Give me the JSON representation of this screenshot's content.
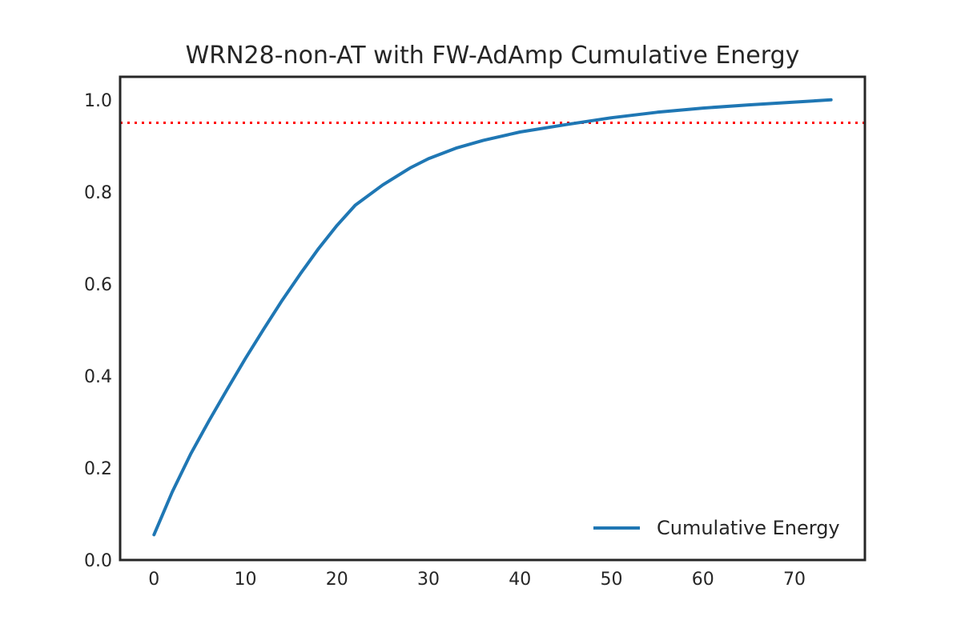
{
  "chart_data": {
    "type": "line",
    "title": "WRN28-non-AT with FW-AdAmp Cumulative Energy",
    "xlabel": "",
    "ylabel": "",
    "xlim": [
      -3.7,
      77.7
    ],
    "ylim": [
      0.0,
      1.05
    ],
    "xticks": [
      0,
      10,
      20,
      30,
      40,
      50,
      60,
      70
    ],
    "yticks": [
      0.0,
      0.2,
      0.4,
      0.6,
      0.8,
      1.0
    ],
    "xtick_labels": [
      "0",
      "10",
      "20",
      "30",
      "40",
      "50",
      "60",
      "70"
    ],
    "ytick_labels": [
      "0.0",
      "0.2",
      "0.4",
      "0.6",
      "0.8",
      "1.0"
    ],
    "grid": false,
    "legend_position": "lower-right",
    "threshold": {
      "y": 0.95,
      "color": "#ff0000",
      "style": "dotted"
    },
    "series": [
      {
        "name": "Cumulative Energy",
        "color": "#1f77b4",
        "x": [
          0,
          2,
          4,
          6,
          8,
          10,
          12,
          14,
          16,
          18,
          20,
          22,
          25,
          28,
          30,
          33,
          36,
          40,
          45,
          50,
          55,
          60,
          65,
          70,
          74
        ],
        "y": [
          0.055,
          0.148,
          0.23,
          0.302,
          0.371,
          0.438,
          0.502,
          0.564,
          0.622,
          0.677,
          0.727,
          0.771,
          0.815,
          0.852,
          0.872,
          0.895,
          0.912,
          0.93,
          0.946,
          0.961,
          0.973,
          0.982,
          0.989,
          0.995,
          1.0
        ]
      }
    ]
  }
}
